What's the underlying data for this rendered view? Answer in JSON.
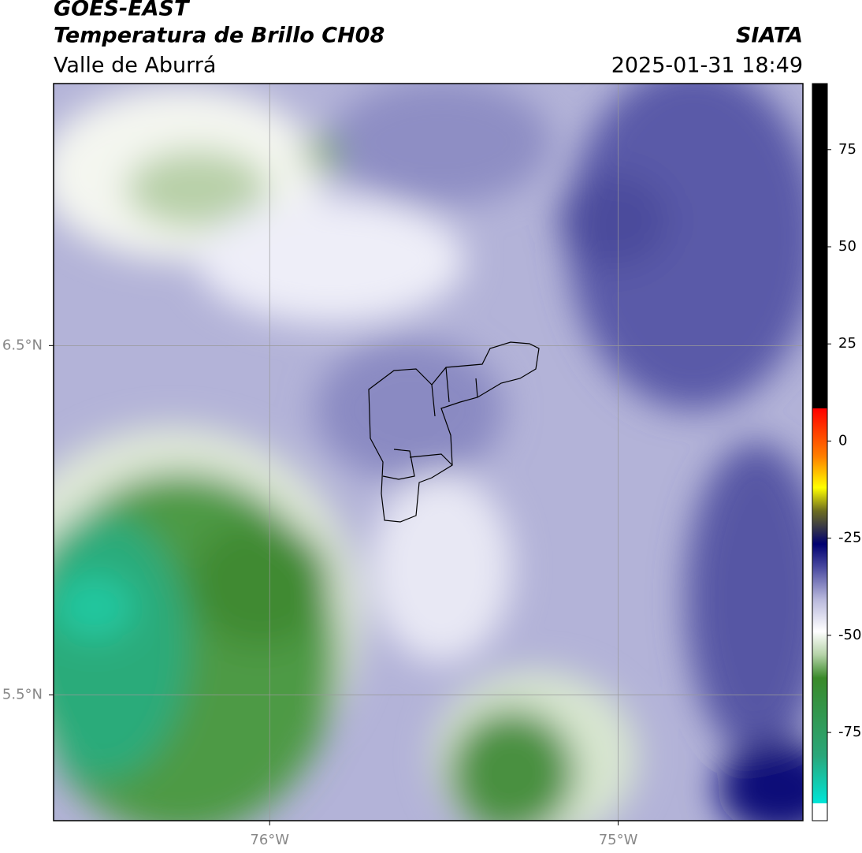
{
  "header": {
    "title": "GOES-EAST",
    "subtitle": "Temperatura de Brillo CH08",
    "region": "Valle de Aburrá",
    "source": "SIATA",
    "timestamp": "2025-01-31 18:49"
  },
  "map": {
    "xlim": [
      -76.62,
      -74.47
    ],
    "ylim": [
      5.14,
      7.25
    ],
    "xticks": [
      {
        "value": -76,
        "label": "76°W"
      },
      {
        "value": -75,
        "label": "75°W"
      }
    ],
    "yticks": [
      {
        "value": 6.5,
        "label": "6.5°N"
      },
      {
        "value": 5.5,
        "label": "5.5°N"
      }
    ]
  },
  "colorbar": {
    "lim": [
      -97.7,
      92
    ],
    "ticks": [
      75,
      50,
      25,
      0,
      -25,
      -50,
      -75
    ],
    "stops": [
      {
        "value": -97.7,
        "color": "#ffffff"
      },
      {
        "value": -93.2,
        "color": "#ffffff"
      },
      {
        "value": -93.2,
        "color": "#00e5d8"
      },
      {
        "value": -81,
        "color": "#2aa77a"
      },
      {
        "value": -61,
        "color": "#3a8a2a"
      },
      {
        "value": -55,
        "color": "#b5d3a8"
      },
      {
        "value": -49,
        "color": "#ffffff"
      },
      {
        "value": -40.7,
        "color": "#b8b8dc"
      },
      {
        "value": -32.5,
        "color": "#4a4aa0"
      },
      {
        "value": -26.5,
        "color": "#000070"
      },
      {
        "value": -18,
        "color": "#6d6d20"
      },
      {
        "value": -12,
        "color": "#ffff00"
      },
      {
        "value": -4,
        "color": "#ff8000"
      },
      {
        "value": 8.4,
        "color": "#ff0000"
      },
      {
        "value": 8.4,
        "color": "#000000"
      },
      {
        "value": 92,
        "color": "#000000"
      }
    ]
  }
}
